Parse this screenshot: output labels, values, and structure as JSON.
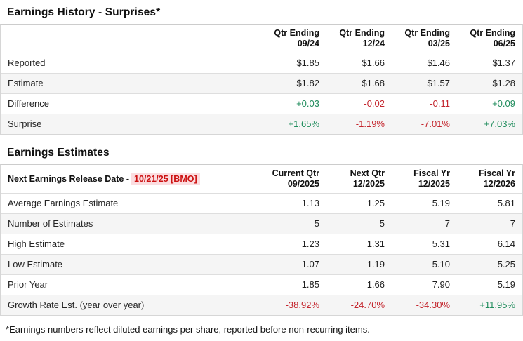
{
  "colors": {
    "positive_green": "#1f8c5c",
    "negative_red": "#c4262e",
    "release_highlight_bg": "#fbdde0",
    "release_highlight_text": "#cc1111"
  },
  "surprises_table": {
    "title": "Earnings History - Surprises*",
    "columns": [
      "Qtr Ending\n09/24",
      "Qtr Ending\n12/24",
      "Qtr Ending\n03/25",
      "Qtr Ending\n06/25"
    ],
    "rows": [
      {
        "label": "Reported",
        "values": [
          "$1.85",
          "$1.66",
          "$1.46",
          "$1.37"
        ],
        "value_colors": [
          "",
          "",
          "",
          ""
        ]
      },
      {
        "label": "Estimate",
        "values": [
          "$1.82",
          "$1.68",
          "$1.57",
          "$1.28"
        ],
        "value_colors": [
          "",
          "",
          "",
          ""
        ]
      },
      {
        "label": "Difference",
        "values": [
          "+0.03",
          "-0.02",
          "-0.11",
          "+0.09"
        ],
        "value_colors": [
          "pos",
          "neg",
          "neg",
          "pos"
        ]
      },
      {
        "label": "Surprise",
        "values": [
          "+1.65%",
          "-1.19%",
          "-7.01%",
          "+7.03%"
        ],
        "value_colors": [
          "pos",
          "neg",
          "neg",
          "pos"
        ]
      }
    ]
  },
  "estimates_table": {
    "title": "Earnings Estimates",
    "release_label": "Next Earnings Release Date -",
    "release_date": "10/21/25 [BMO]",
    "columns": [
      "Current Qtr\n09/2025",
      "Next Qtr\n12/2025",
      "Fiscal Yr\n12/2025",
      "Fiscal Yr\n12/2026"
    ],
    "rows": [
      {
        "label": "Average Earnings Estimate",
        "values": [
          "1.13",
          "1.25",
          "5.19",
          "5.81"
        ],
        "value_colors": [
          "",
          "",
          "",
          ""
        ]
      },
      {
        "label": "Number of Estimates",
        "values": [
          "5",
          "5",
          "7",
          "7"
        ],
        "value_colors": [
          "",
          "",
          "",
          ""
        ]
      },
      {
        "label": "High Estimate",
        "values": [
          "1.23",
          "1.31",
          "5.31",
          "6.14"
        ],
        "value_colors": [
          "",
          "",
          "",
          ""
        ]
      },
      {
        "label": "Low Estimate",
        "values": [
          "1.07",
          "1.19",
          "5.10",
          "5.25"
        ],
        "value_colors": [
          "",
          "",
          "",
          ""
        ]
      },
      {
        "label": "Prior Year",
        "values": [
          "1.85",
          "1.66",
          "7.90",
          "5.19"
        ],
        "value_colors": [
          "",
          "",
          "",
          ""
        ]
      },
      {
        "label": "Growth Rate Est. (year over year)",
        "values": [
          "-38.92%",
          "-24.70%",
          "-34.30%",
          "+11.95%"
        ],
        "value_colors": [
          "neg",
          "neg",
          "neg",
          "pos"
        ]
      }
    ]
  },
  "footnote": "*Earnings numbers reflect diluted earnings per share, reported before non-recurring items."
}
